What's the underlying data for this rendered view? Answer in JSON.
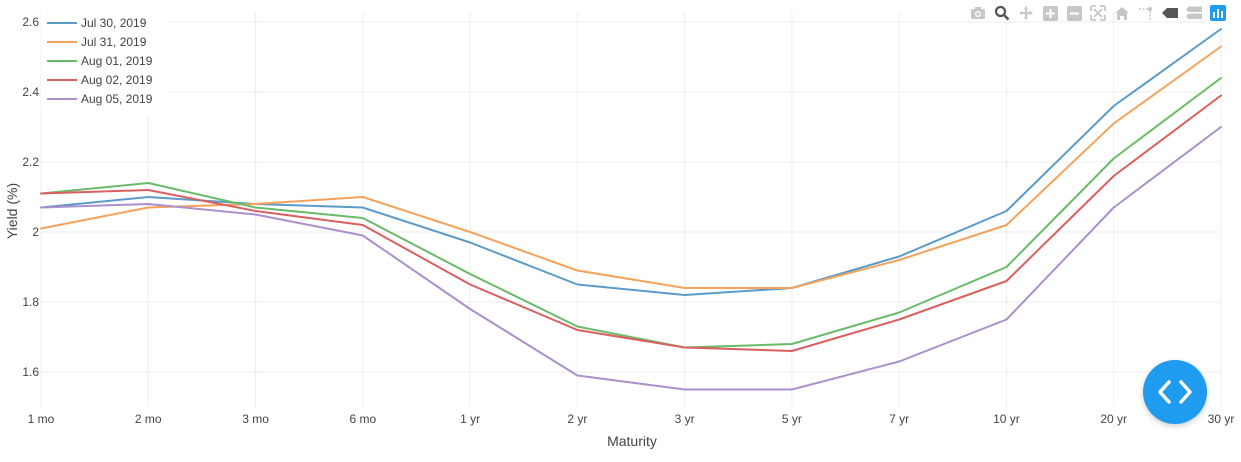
{
  "chart_data": {
    "type": "line",
    "title": "",
    "xlabel": "Maturity",
    "ylabel": "Yield (%)",
    "categories": [
      "1 mo",
      "2 mo",
      "3 mo",
      "6 mo",
      "1 yr",
      "2 yr",
      "3 yr",
      "5 yr",
      "7 yr",
      "10 yr",
      "20 yr",
      "30 yr"
    ],
    "ylim": [
      1.5,
      2.6
    ],
    "yticks": [
      1.6,
      1.8,
      2,
      2.2,
      2.4,
      2.6
    ],
    "grid": true,
    "legend_position": "top-left",
    "series": [
      {
        "name": "Jul 30, 2019",
        "color": "#5b9bc8",
        "values": [
          2.07,
          2.1,
          2.08,
          2.07,
          1.97,
          1.85,
          1.82,
          1.84,
          1.93,
          2.06,
          2.36,
          2.58
        ]
      },
      {
        "name": "Jul 31, 2019",
        "color": "#f5a25d",
        "values": [
          2.01,
          2.07,
          2.08,
          2.1,
          2.0,
          1.89,
          1.84,
          1.84,
          1.92,
          2.02,
          2.31,
          2.53
        ]
      },
      {
        "name": "Aug 01, 2019",
        "color": "#69bb69",
        "values": [
          2.11,
          2.14,
          2.07,
          2.04,
          1.88,
          1.73,
          1.67,
          1.68,
          1.77,
          1.9,
          2.21,
          2.44
        ]
      },
      {
        "name": "Aug 02, 2019",
        "color": "#d9605f",
        "values": [
          2.11,
          2.12,
          2.06,
          2.02,
          1.85,
          1.72,
          1.67,
          1.66,
          1.75,
          1.86,
          2.16,
          2.39
        ]
      },
      {
        "name": "Aug 05, 2019",
        "color": "#ac8fcc",
        "values": [
          2.07,
          2.08,
          2.05,
          1.99,
          1.78,
          1.59,
          1.55,
          1.55,
          1.63,
          1.75,
          2.07,
          2.3
        ]
      }
    ]
  },
  "toolbar": {
    "icons": [
      "camera-icon",
      "zoom-icon",
      "pan-icon",
      "zoom-in-icon",
      "zoom-out-icon",
      "autoscale-icon",
      "home-icon",
      "spike-lines-icon",
      "hover-closest-icon",
      "hover-compare-icon",
      "plotly-logo-icon"
    ],
    "active_color": "#1f9cf0"
  },
  "fab": {
    "icon": "code-icon",
    "color": "#1f9cf0"
  }
}
